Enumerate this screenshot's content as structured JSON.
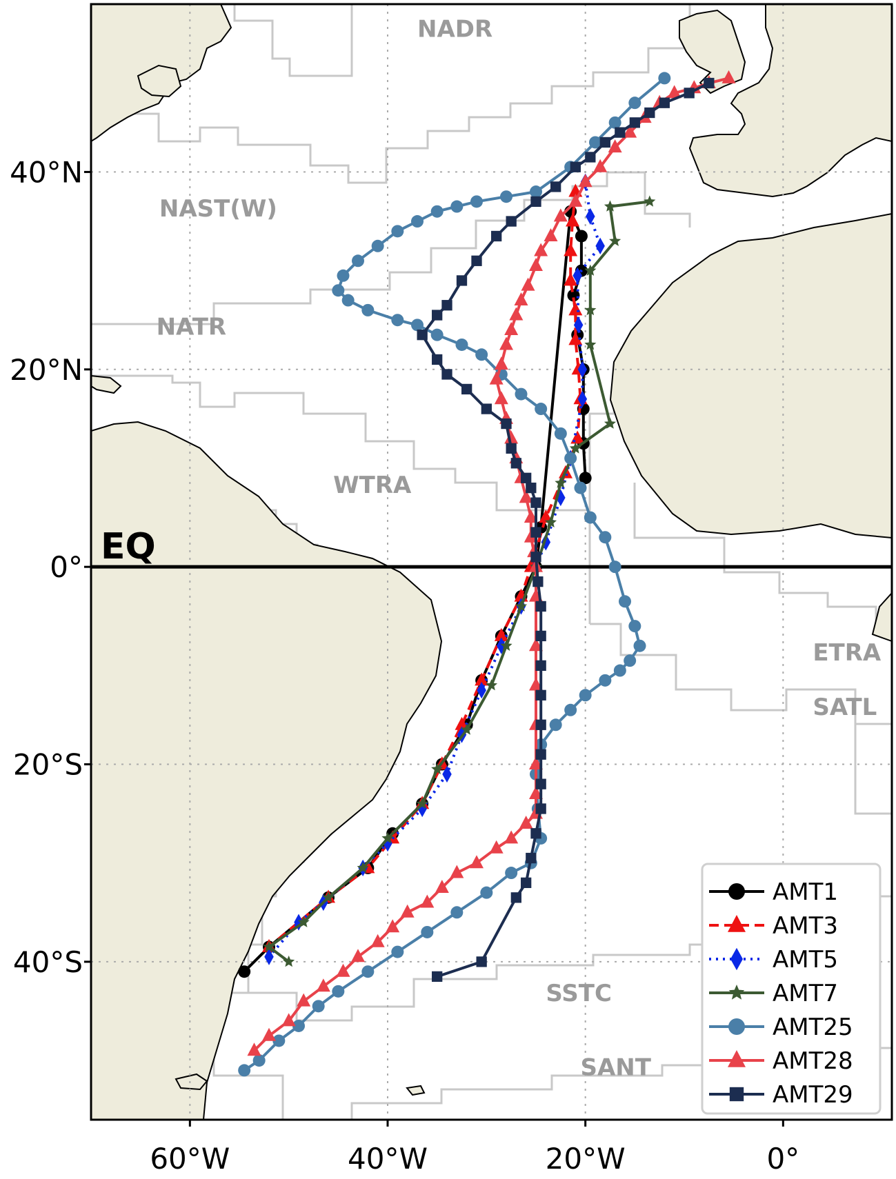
{
  "map": {
    "lon_range": [
      -70,
      11
    ],
    "lat_range": [
      -56,
      57
    ],
    "land_color": "#eeecdc",
    "ocean_color": "#ffffff",
    "province_line_color": "#c8c8c8",
    "grid": true,
    "equator_label": "EQ"
  },
  "axes": {
    "x_ticks": [
      {
        "value": -60,
        "label": "60°W"
      },
      {
        "value": -40,
        "label": "40°W"
      },
      {
        "value": -20,
        "label": "20°W"
      },
      {
        "value": 0,
        "label": "0°"
      }
    ],
    "y_ticks": [
      {
        "value": 40,
        "label": "40°N"
      },
      {
        "value": 20,
        "label": "20°N"
      },
      {
        "value": 0,
        "label": "0°"
      },
      {
        "value": -20,
        "label": "20°S"
      },
      {
        "value": -40,
        "label": "40°S"
      }
    ]
  },
  "provinces": [
    {
      "name": "NADR",
      "lon": -37,
      "lat": 53.7
    },
    {
      "name": "NAST(W)",
      "lon": -63.1,
      "lat": 35.5
    },
    {
      "name": "NATR",
      "lon": -63.4,
      "lat": 23.5
    },
    {
      "name": "WTRA",
      "lon": -45.5,
      "lat": 7.5
    },
    {
      "name": "ETRA",
      "lon": 3,
      "lat": -9.5
    },
    {
      "name": "SATL",
      "lon": 3,
      "lat": -15
    },
    {
      "name": "SSTC",
      "lon": -24,
      "lat": -44
    },
    {
      "name": "SANT",
      "lon": -20.5,
      "lat": -51.5
    }
  ],
  "chart_data": {
    "type": "line",
    "series": [
      {
        "name": "AMT1",
        "color": "#000000",
        "marker": "circle",
        "dash": "solid",
        "points": [
          [
            -20,
            9
          ],
          [
            -20.2,
            12.5
          ],
          [
            -20.2,
            16
          ],
          [
            -20.2,
            20
          ],
          [
            -20.8,
            23.5
          ],
          [
            -21.2,
            27.5
          ],
          [
            -20.4,
            30
          ],
          [
            -20.4,
            33.5
          ],
          [
            -21.5,
            36
          ],
          [
            -24.5,
            4
          ],
          [
            -25,
            0
          ],
          [
            -26.5,
            -3
          ],
          [
            -28.5,
            -7
          ],
          [
            -30.5,
            -11.5
          ],
          [
            -32,
            -16
          ],
          [
            -34.5,
            -20
          ],
          [
            -36.5,
            -24
          ],
          [
            -39.5,
            -27
          ],
          [
            -42,
            -30.5
          ],
          [
            -46,
            -33.5
          ],
          [
            -52,
            -38.5
          ],
          [
            -54.5,
            -41
          ]
        ]
      },
      {
        "name": "AMT3",
        "color": "#ee1111",
        "marker": "triangle",
        "dash": "dashed",
        "points": [
          [
            -21,
            38
          ],
          [
            -21.3,
            35
          ],
          [
            -21.5,
            32
          ],
          [
            -21.5,
            29
          ],
          [
            -21,
            26
          ],
          [
            -21,
            23
          ],
          [
            -20.7,
            20
          ],
          [
            -20.5,
            17
          ],
          [
            -20.8,
            13
          ],
          [
            -22,
            9.5
          ],
          [
            -24,
            5
          ],
          [
            -25.5,
            0
          ],
          [
            -26.5,
            -3
          ],
          [
            -28.5,
            -7
          ],
          [
            -30.5,
            -11.5
          ],
          [
            -32.5,
            -16
          ],
          [
            -34.5,
            -20
          ],
          [
            -36.5,
            -24
          ],
          [
            -39.5,
            -27.5
          ],
          [
            -42,
            -30.5
          ],
          [
            -46,
            -33.5
          ],
          [
            -52,
            -38.5
          ]
        ]
      },
      {
        "name": "AMT5",
        "color": "#0a28e6",
        "marker": "diamond",
        "dash": "dotted",
        "points": [
          [
            -20,
            39
          ],
          [
            -19.5,
            35.5
          ],
          [
            -18.5,
            32.5
          ],
          [
            -20.8,
            29.5
          ],
          [
            -20.7,
            24.5
          ],
          [
            -20.3,
            20
          ],
          [
            -20.3,
            17
          ],
          [
            -21.5,
            11
          ],
          [
            -22.5,
            7
          ],
          [
            -24,
            2.5
          ],
          [
            -25,
            0
          ],
          [
            -26.5,
            -4
          ],
          [
            -28.5,
            -8
          ],
          [
            -30.5,
            -12.5
          ],
          [
            -32.5,
            -17
          ],
          [
            -34,
            -21
          ],
          [
            -36.5,
            -24.5
          ],
          [
            -40,
            -28
          ],
          [
            -42.5,
            -30.5
          ],
          [
            -46.5,
            -34
          ],
          [
            -49,
            -36
          ],
          [
            -52,
            -39.5
          ]
        ]
      },
      {
        "name": "AMT7",
        "color": "#3c5a32",
        "marker": "star",
        "dash": "solid",
        "points": [
          [
            -13.5,
            37
          ],
          [
            -17.5,
            36.5
          ],
          [
            -17,
            33
          ],
          [
            -19.5,
            30
          ],
          [
            -19.5,
            26
          ],
          [
            -19.5,
            22.5
          ],
          [
            -17.5,
            14.5
          ],
          [
            -21,
            12
          ],
          [
            -22.5,
            8.5
          ],
          [
            -23.5,
            4.5
          ],
          [
            -25,
            0
          ],
          [
            -26.5,
            -4
          ],
          [
            -28,
            -8
          ],
          [
            -29.5,
            -12
          ],
          [
            -32,
            -16.5
          ],
          [
            -35,
            -20.5
          ],
          [
            -36.5,
            -24
          ],
          [
            -40,
            -27.5
          ],
          [
            -42.5,
            -30.5
          ],
          [
            -46,
            -33.5
          ],
          [
            -48.5,
            -36
          ],
          [
            -52,
            -38.5
          ],
          [
            -50,
            -40
          ]
        ]
      },
      {
        "name": "AMT25",
        "color": "#4a7fa8",
        "marker": "circle",
        "dash": "solid",
        "points": [
          [
            -12,
            49.5
          ],
          [
            -15,
            47
          ],
          [
            -17,
            45
          ],
          [
            -19,
            43
          ],
          [
            -21.5,
            40.5
          ],
          [
            -25,
            38
          ],
          [
            -28,
            37.5
          ],
          [
            -31,
            37
          ],
          [
            -33,
            36.5
          ],
          [
            -35,
            36
          ],
          [
            -37,
            35
          ],
          [
            -39,
            34
          ],
          [
            -41,
            32.5
          ],
          [
            -43,
            31
          ],
          [
            -44.5,
            29.5
          ],
          [
            -45,
            28
          ],
          [
            -44,
            27
          ],
          [
            -42,
            26
          ],
          [
            -39,
            25
          ],
          [
            -37,
            24.5
          ],
          [
            -35,
            23.5
          ],
          [
            -32.5,
            22.5
          ],
          [
            -30.5,
            21.5
          ],
          [
            -28.5,
            19.5
          ],
          [
            -26.5,
            17.5
          ],
          [
            -24.5,
            16
          ],
          [
            -22.5,
            13.5
          ],
          [
            -21.5,
            11
          ],
          [
            -20.5,
            8
          ],
          [
            -19.5,
            5
          ],
          [
            -18,
            3
          ],
          [
            -17,
            0
          ],
          [
            -16,
            -3.5
          ],
          [
            -15,
            -6
          ],
          [
            -14.5,
            -8
          ],
          [
            -15.5,
            -9.5
          ],
          [
            -16.5,
            -10.5
          ],
          [
            -18,
            -11.5
          ],
          [
            -20,
            -13
          ],
          [
            -21.5,
            -14.5
          ],
          [
            -23,
            -16
          ],
          [
            -24.5,
            -18
          ],
          [
            -25,
            -21
          ],
          [
            -24.8,
            -24.5
          ],
          [
            -24.5,
            -27.5
          ],
          [
            -25.5,
            -30
          ],
          [
            -27.5,
            -31
          ],
          [
            -30,
            -33
          ],
          [
            -33,
            -35
          ],
          [
            -36,
            -37
          ],
          [
            -39,
            -39
          ],
          [
            -42,
            -41
          ],
          [
            -45,
            -43
          ],
          [
            -47,
            -44.5
          ],
          [
            -49,
            -46.5
          ],
          [
            -51,
            -48
          ],
          [
            -53,
            -50
          ],
          [
            -54.5,
            -51
          ]
        ]
      },
      {
        "name": "AMT28",
        "color": "#e8424a",
        "marker": "triangle",
        "dash": "solid",
        "points": [
          [
            -5.5,
            49.5
          ],
          [
            -7.5,
            49
          ],
          [
            -9,
            48.5
          ],
          [
            -11,
            48
          ],
          [
            -12.5,
            47
          ],
          [
            -14,
            45.5
          ],
          [
            -15.5,
            44
          ],
          [
            -17,
            42.5
          ],
          [
            -18.5,
            40.5
          ],
          [
            -20,
            39
          ],
          [
            -21,
            37
          ],
          [
            -22.5,
            35.5
          ],
          [
            -23.5,
            33.5
          ],
          [
            -24.5,
            32
          ],
          [
            -25,
            30.5
          ],
          [
            -25.8,
            28.5
          ],
          [
            -26.5,
            27
          ],
          [
            -27,
            25.5
          ],
          [
            -27.5,
            24
          ],
          [
            -28,
            22.5
          ],
          [
            -28.5,
            20.5
          ],
          [
            -29,
            19
          ],
          [
            -28.5,
            17
          ],
          [
            -28,
            15
          ],
          [
            -27.5,
            13
          ],
          [
            -27,
            11
          ],
          [
            -26.5,
            9
          ],
          [
            -26,
            7
          ],
          [
            -25.5,
            5
          ],
          [
            -25.5,
            3
          ],
          [
            -25.2,
            1.5
          ],
          [
            -25,
            0
          ],
          [
            -25,
            -3
          ],
          [
            -25,
            -8
          ],
          [
            -25,
            -12
          ],
          [
            -25,
            -16
          ],
          [
            -25,
            -20
          ],
          [
            -25,
            -23
          ],
          [
            -25,
            -25
          ],
          [
            -26,
            -26
          ],
          [
            -27.5,
            -27.5
          ],
          [
            -29,
            -28.5
          ],
          [
            -31,
            -30
          ],
          [
            -33,
            -31
          ],
          [
            -34.5,
            -32.5
          ],
          [
            -36,
            -34
          ],
          [
            -38,
            -35
          ],
          [
            -39.5,
            -36.5
          ],
          [
            -41,
            -38
          ],
          [
            -43,
            -39.5
          ],
          [
            -44.5,
            -41
          ],
          [
            -46.5,
            -42.5
          ],
          [
            -48.5,
            -44
          ],
          [
            -50,
            -46
          ],
          [
            -52,
            -47.5
          ],
          [
            -53.5,
            -49
          ]
        ]
      },
      {
        "name": "AMT29",
        "color": "#1c2d50",
        "marker": "square",
        "dash": "solid",
        "points": [
          [
            -7.5,
            49
          ],
          [
            -9.5,
            48
          ],
          [
            -12,
            47
          ],
          [
            -13.5,
            46
          ],
          [
            -15,
            45
          ],
          [
            -16.5,
            44
          ],
          [
            -18,
            43
          ],
          [
            -19.5,
            41.5
          ],
          [
            -21,
            40.5
          ],
          [
            -23,
            38.5
          ],
          [
            -25,
            37
          ],
          [
            -27.5,
            35
          ],
          [
            -29,
            33.5
          ],
          [
            -31,
            31
          ],
          [
            -32.5,
            29
          ],
          [
            -34,
            26.5
          ],
          [
            -35,
            25.5
          ],
          [
            -36.5,
            23.5
          ],
          [
            -35,
            21
          ],
          [
            -34,
            19.5
          ],
          [
            -32,
            18
          ],
          [
            -30,
            16
          ],
          [
            -28,
            14.5
          ],
          [
            -27.5,
            12
          ],
          [
            -27,
            10.5
          ],
          [
            -26,
            9
          ],
          [
            -25.5,
            8
          ],
          [
            -25,
            6.5
          ],
          [
            -25,
            3.5
          ],
          [
            -25,
            1
          ],
          [
            -24.8,
            -1.5
          ],
          [
            -24.5,
            -4
          ],
          [
            -24.5,
            -7
          ],
          [
            -24.5,
            -10
          ],
          [
            -24.5,
            -13
          ],
          [
            -24.5,
            -16
          ],
          [
            -24.5,
            -19
          ],
          [
            -24.5,
            -22
          ],
          [
            -24.5,
            -24.5
          ],
          [
            -25,
            -27
          ],
          [
            -25.5,
            -29.5
          ],
          [
            -26,
            -32
          ],
          [
            -27,
            -33.5
          ],
          [
            -30.5,
            -40
          ],
          [
            -35,
            -41.5
          ]
        ]
      }
    ],
    "legend": {
      "position": "bottom-right"
    }
  }
}
